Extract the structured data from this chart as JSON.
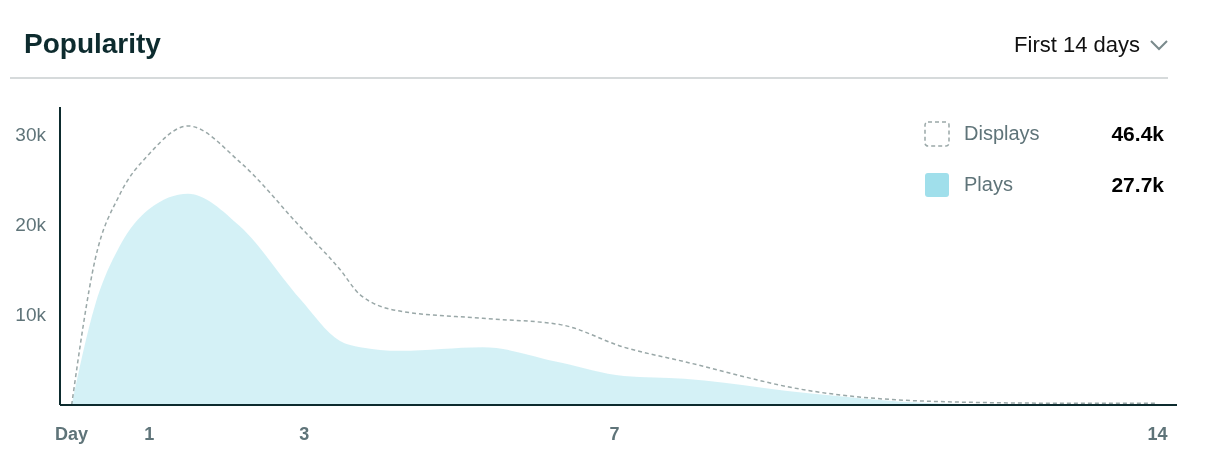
{
  "chart_data": {
    "type": "area",
    "title": "Popularity",
    "subtitle": "First 14 days",
    "x": [
      0,
      0.3,
      0.62,
      1,
      1.5,
      2.17,
      2.94,
      3.46,
      3.72,
      4.23,
      5.3,
      6.3,
      7.12,
      7.9,
      9.5,
      11.1,
      12.7,
      14
    ],
    "series": [
      {
        "name": "Displays",
        "type": "line",
        "line_style": "dashed",
        "color": "#9aa8a8",
        "values": [
          0,
          16000,
          23300,
          27800,
          30900,
          26900,
          19800,
          15000,
          12200,
          10400,
          9600,
          8900,
          6400,
          4800,
          1600,
          400,
          200,
          200
        ]
      },
      {
        "name": "Plays",
        "color": "#a0dfeb",
        "values": [
          0,
          11000,
          17600,
          21700,
          23400,
          19800,
          11800,
          7100,
          6400,
          6000,
          6400,
          4700,
          3200,
          2900,
          1300,
          200,
          0,
          0
        ]
      }
    ],
    "annotations": [
      "46.4k",
      "27.7k"
    ],
    "xlim": [
      -0.15,
      14.25
    ],
    "xticks": [
      {
        "value": 0,
        "label": "Day"
      },
      1,
      3,
      7,
      14
    ],
    "ylim": [
      0,
      33000
    ],
    "yticks": [
      {
        "value": 10000,
        "label": "10k"
      },
      {
        "value": 20000,
        "label": "20k"
      },
      {
        "value": 30000,
        "label": "30k"
      }
    ],
    "grid": false,
    "legend": "top right",
    "marker": "none"
  }
}
